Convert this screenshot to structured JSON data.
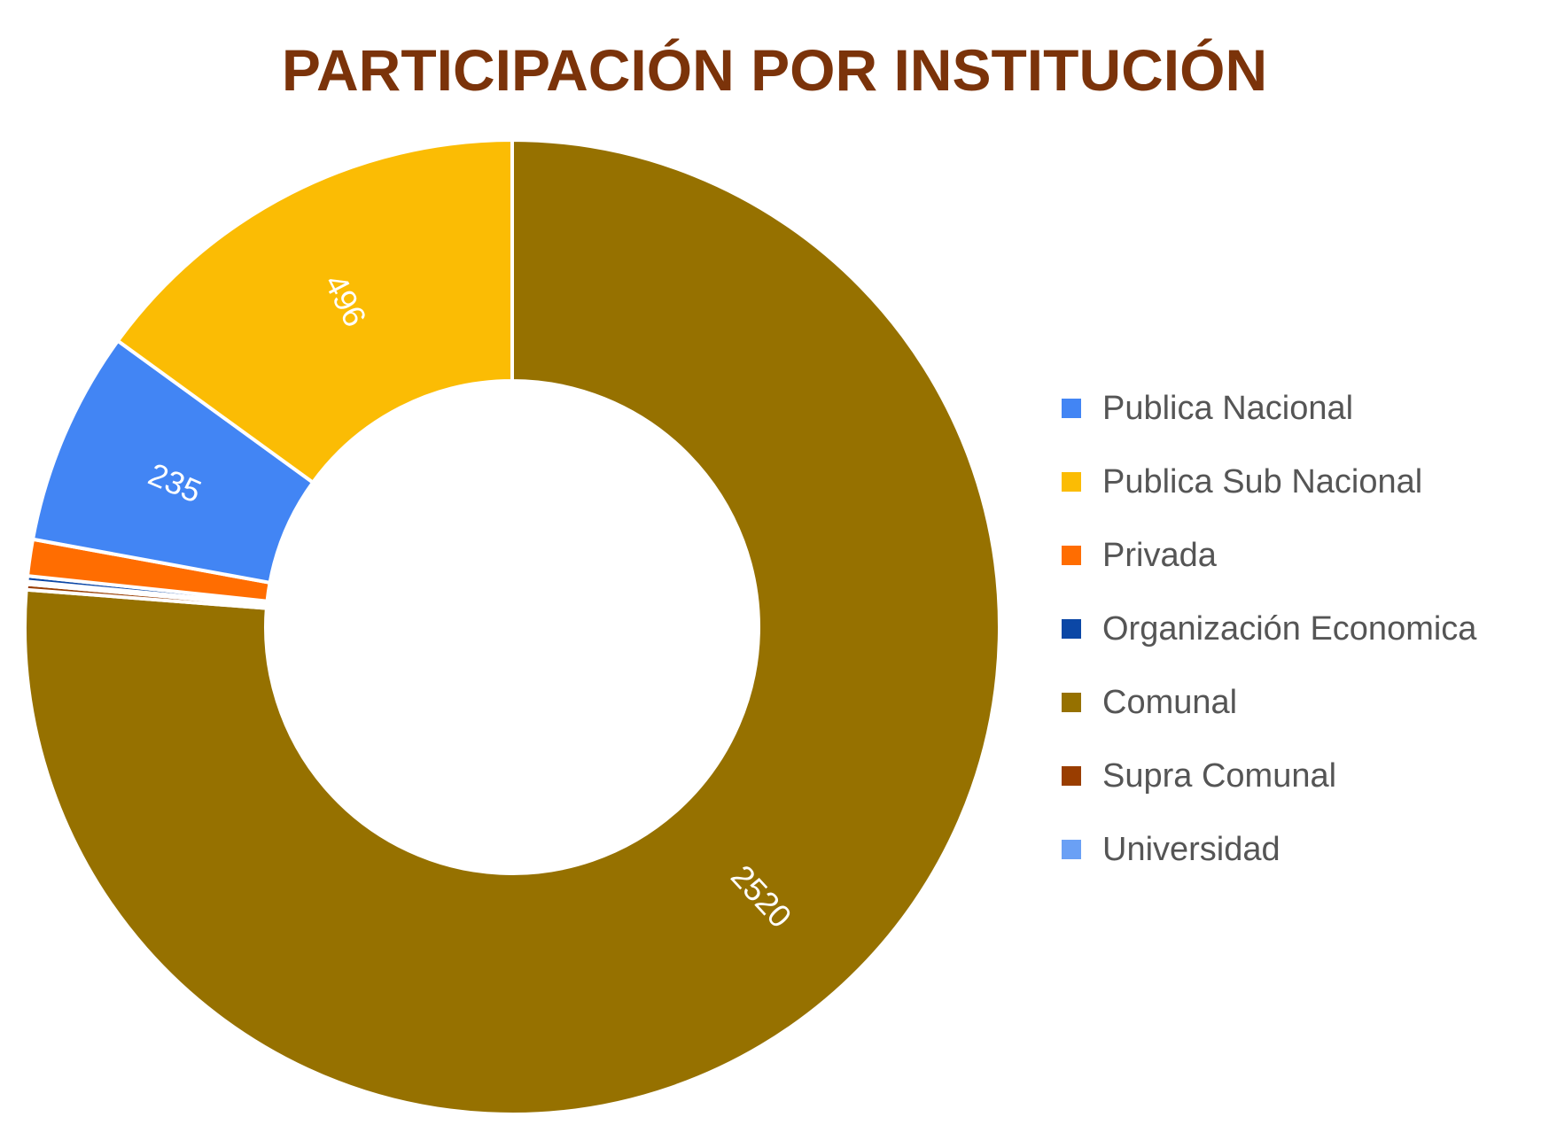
{
  "chart_data": {
    "type": "pie",
    "variant": "donut",
    "title": "PARTICIPACIÓN POR INSTITUCIÓN",
    "categories": [
      "Publica Nacional",
      "Publica Sub Nacional",
      "Privada",
      "Organización Economica",
      "Comunal",
      "Supra Comunal",
      "Universidad"
    ],
    "values": [
      235,
      496,
      40,
      6,
      2520,
      6,
      3
    ],
    "data_labels": [
      "235",
      "496",
      "",
      "",
      "2520",
      "",
      ""
    ],
    "colors": [
      "#4285F4",
      "#FBBC04",
      "#FF6D01",
      "#0B47A6",
      "#967100",
      "#993D00",
      "#6AA0F5"
    ],
    "legend": {
      "position": "right"
    },
    "label_color": "#ffffff",
    "title_color": "#7B330A",
    "legend_text_color": "#555555"
  }
}
